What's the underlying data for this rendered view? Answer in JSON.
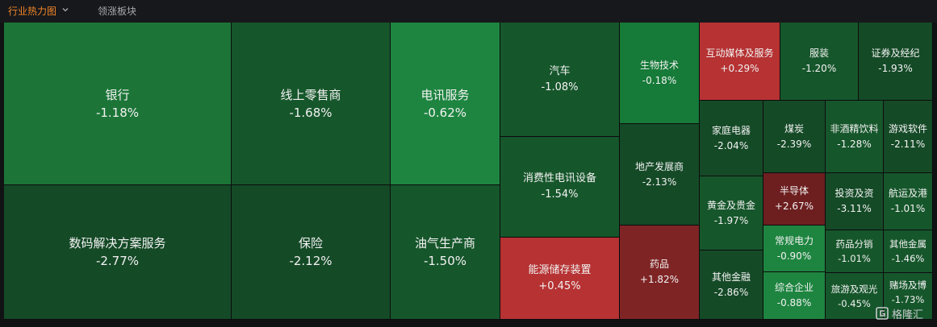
{
  "tabs": {
    "active_label": "行业热力图",
    "inactive_label": "领涨板块"
  },
  "logo": {
    "text": "格隆汇"
  },
  "sectors": [
    {
      "name": "银行",
      "change": "-1.18%"
    },
    {
      "name": "数码解决方案服务",
      "change": "-2.77%"
    },
    {
      "name": "线上零售商",
      "change": "-1.68%"
    },
    {
      "name": "保险",
      "change": "-2.12%"
    },
    {
      "name": "电讯服务",
      "change": "-0.62%"
    },
    {
      "name": "油气生产商",
      "change": "-1.50%"
    },
    {
      "name": "汽车",
      "change": "-1.08%"
    },
    {
      "name": "消费性电讯设备",
      "change": "-1.54%"
    },
    {
      "name": "能源储存装置",
      "change": "+0.45%"
    },
    {
      "name": "生物技术",
      "change": "-0.18%"
    },
    {
      "name": "地产发展商",
      "change": "-2.13%"
    },
    {
      "name": "药品",
      "change": "+1.82%"
    },
    {
      "name": "互动媒体及服务",
      "change": "+0.29%"
    },
    {
      "name": "服装",
      "change": "-1.20%"
    },
    {
      "name": "证券及经纪",
      "change": "-1.93%"
    },
    {
      "name": "家庭电器",
      "change": "-2.04%"
    },
    {
      "name": "煤炭",
      "change": "-2.39%"
    },
    {
      "name": "非酒精饮料",
      "change": "-1.28%"
    },
    {
      "name": "游戏软件",
      "change": "-2.11%"
    },
    {
      "name": "黄金及贵金",
      "change": "-1.97%"
    },
    {
      "name": "半导体",
      "change": "+2.67%"
    },
    {
      "name": "投资及资",
      "change": "-3.11%"
    },
    {
      "name": "航运及港",
      "change": "-1.01%"
    },
    {
      "name": "常规电力",
      "change": "-0.90%"
    },
    {
      "name": "药品分销",
      "change": "-1.01%"
    },
    {
      "name": "其他金属",
      "change": "-1.46%"
    },
    {
      "name": "其他金融",
      "change": "-2.86%"
    },
    {
      "name": "综合企业",
      "change": "-0.88%"
    },
    {
      "name": "旅游及观光",
      "change": "-0.45%"
    },
    {
      "name": "赌场及博",
      "change": "-1.73%"
    }
  ]
}
